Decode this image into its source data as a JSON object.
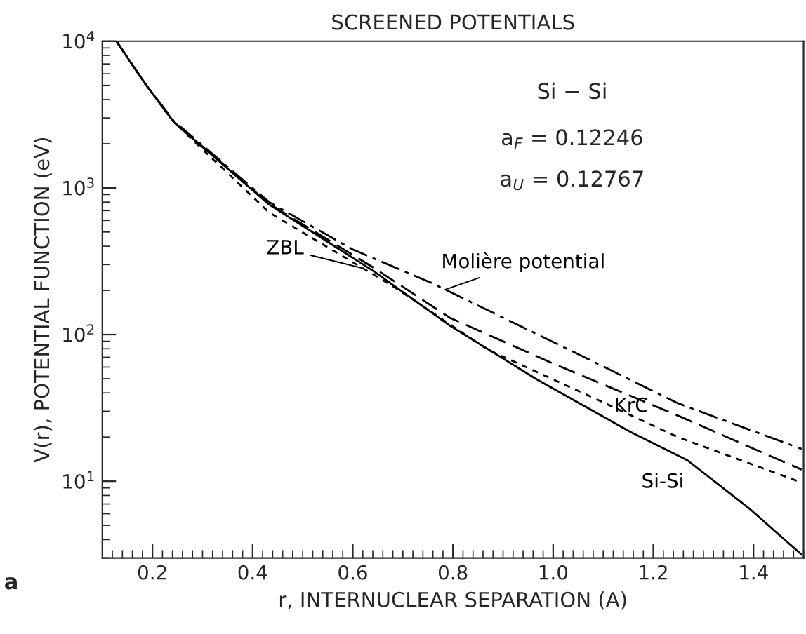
{
  "chart_data": {
    "type": "line",
    "title": "SCREENED POTENTIALS",
    "xlabel": "r, INTERNUCLEAR SEPARATION (A)",
    "ylabel": "V(r), POTENTIAL FUNCTION (eV)",
    "log": "y",
    "grid": false,
    "legend": false,
    "marker": "none",
    "xlim": [
      0.1,
      1.5
    ],
    "ylim": [
      3,
      10000
    ],
    "xticks": [
      0.2,
      0.4,
      0.6,
      0.8,
      {
        "value": 1,
        "label": "1.0"
      },
      1.2,
      1.4
    ],
    "yticks": [
      {
        "value": 10,
        "label": "10$^{1}$"
      },
      {
        "value": 100,
        "label": "10$^{2}$"
      },
      {
        "value": 1000,
        "label": "10$^{3}$"
      },
      {
        "value": 10000,
        "label": "10$^{4}$"
      }
    ],
    "series": [
      {
        "name": "Si-Si",
        "color": "#000000",
        "line_style": "solid",
        "x": [
          0.128,
          0.186,
          0.243,
          0.433,
          0.642,
          0.794,
          0.965,
          1.154,
          1.268,
          1.392,
          1.496
        ],
        "values": [
          10000,
          5100,
          2800,
          770,
          270,
          115,
          50,
          21.7,
          13.9,
          6.5,
          3.16
        ]
      },
      {
        "name": "ZBL",
        "color": "#000000",
        "line_style": "dotted",
        "x": [
          0.128,
          0.186,
          0.243,
          0.433,
          0.679,
          0.869,
          1.059,
          1.249,
          1.496
        ],
        "values": [
          10000,
          5100,
          2800,
          680,
          215,
          79,
          40,
          20,
          9.8
        ]
      },
      {
        "name": "KrC",
        "color": "#000000",
        "line_style": "dashed",
        "x": [
          0.128,
          0.186,
          0.243,
          0.433,
          0.642,
          0.794,
          1.002,
          1.249,
          1.496
        ],
        "values": [
          10000,
          5100,
          2800,
          780,
          285,
          130,
          63,
          28,
          12
        ]
      },
      {
        "name": "Molière potential",
        "color": "#000000",
        "line_style": "dashdot",
        "x": [
          0.128,
          0.186,
          0.243,
          0.433,
          0.6,
          0.756,
          1.059,
          1.249,
          1.496
        ],
        "values": [
          10000,
          5100,
          2850,
          800,
          380,
          226,
          71,
          34,
          16.6
        ]
      }
    ],
    "annotations": [
      "Si − Si",
      "a$_{F}$ = 0.12246",
      "a$_{U}$ = 0.12767",
      "a"
    ]
  }
}
